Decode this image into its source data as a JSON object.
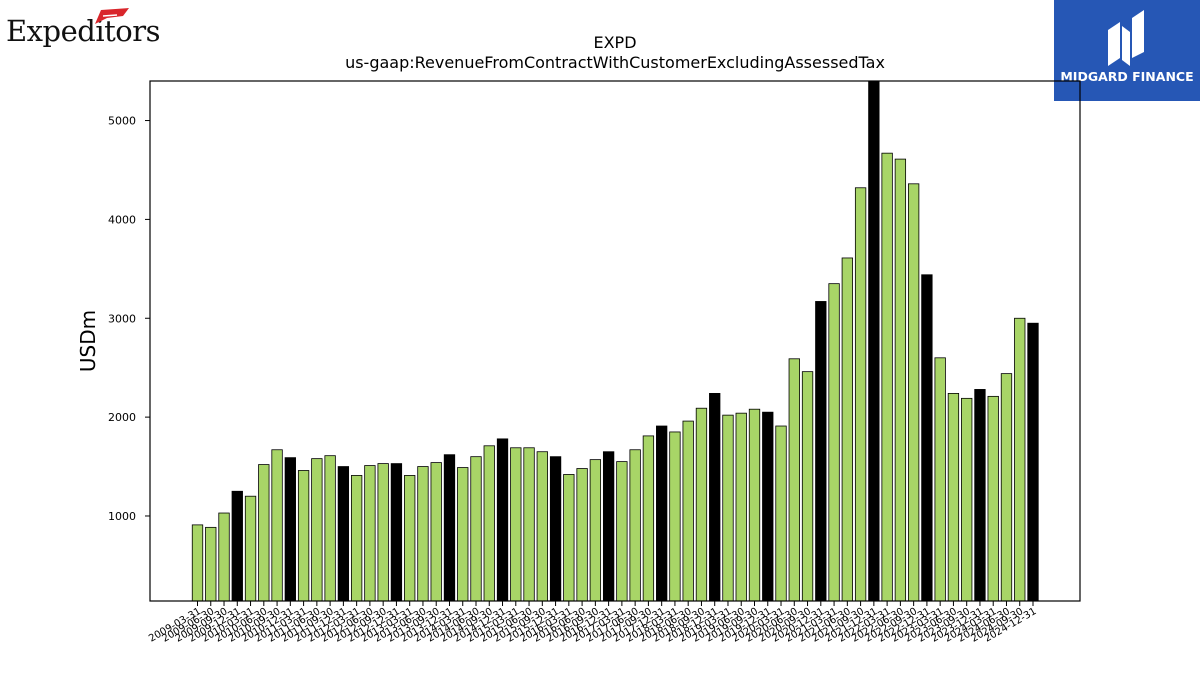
{
  "logos": {
    "left_brand": "Expeditors",
    "right_brand": "MIDGARD FINANCE"
  },
  "chart_data": {
    "type": "bar",
    "title": "EXPD",
    "subtitle": "us-gaap:RevenueFromContractWithCustomerExcludingAssessedTax",
    "xlabel": "",
    "ylabel": "USDm",
    "ylim": [
      140,
      5400
    ],
    "yticks": [
      1000,
      2000,
      3000,
      4000,
      5000
    ],
    "grid": false,
    "colors": {
      "quarter": "#a8d567",
      "year_end": "#000000",
      "edge": "#000000"
    },
    "categories": [
      "2009-03-31",
      "2009-06-30",
      "2009-09-30",
      "2009-12-31",
      "2010-03-31",
      "2010-06-30",
      "2010-09-30",
      "2010-12-31",
      "2011-03-31",
      "2011-06-30",
      "2011-09-30",
      "2011-12-31",
      "2012-03-31",
      "2012-06-30",
      "2012-09-30",
      "2012-12-31",
      "2013-03-31",
      "2013-06-30",
      "2013-09-30",
      "2013-12-31",
      "2014-03-31",
      "2014-06-30",
      "2014-09-30",
      "2014-12-31",
      "2015-03-31",
      "2015-06-30",
      "2015-09-30",
      "2015-12-31",
      "2016-03-31",
      "2016-06-30",
      "2016-09-30",
      "2016-12-31",
      "2017-03-31",
      "2017-06-30",
      "2017-09-30",
      "2017-12-31",
      "2018-03-31",
      "2018-06-30",
      "2018-09-30",
      "2018-12-31",
      "2019-03-31",
      "2019-06-30",
      "2019-09-30",
      "2019-12-31",
      "2020-03-31",
      "2020-06-30",
      "2020-09-30",
      "2020-12-31",
      "2021-03-31",
      "2021-06-30",
      "2021-09-30",
      "2021-12-31",
      "2022-03-31",
      "2022-06-30",
      "2022-09-30",
      "2022-12-31",
      "2023-03-31",
      "2023-06-30",
      "2023-09-30",
      "2023-12-31",
      "2024-03-31",
      "2024-06-30",
      "2024-09-30",
      "2024-12-31"
    ],
    "series": [
      {
        "values": [
          910,
          885,
          1030,
          1250,
          1200,
          1520,
          1670,
          1590,
          1460,
          1580,
          1610,
          1500,
          1410,
          1510,
          1530,
          1530,
          1410,
          1500,
          1540,
          1620,
          1490,
          1600,
          1710,
          1780,
          1690,
          1690,
          1650,
          1600,
          1420,
          1480,
          1570,
          1650,
          1550,
          1670,
          1810,
          1910,
          1850,
          1960,
          2090,
          2240,
          2020,
          2040,
          2080,
          2050,
          1910,
          2590,
          2460,
          3170,
          3350,
          3610,
          4320,
          5400,
          4670,
          4610,
          4360,
          3440,
          2600,
          2240,
          2190,
          2280,
          2210,
          2440,
          3000,
          2950
        ],
        "year_end": [
          false,
          false,
          false,
          true,
          false,
          false,
          false,
          true,
          false,
          false,
          false,
          true,
          false,
          false,
          false,
          true,
          false,
          false,
          false,
          true,
          false,
          false,
          false,
          true,
          false,
          false,
          false,
          true,
          false,
          false,
          false,
          true,
          false,
          false,
          false,
          true,
          false,
          false,
          false,
          true,
          false,
          false,
          false,
          true,
          false,
          false,
          false,
          true,
          false,
          false,
          false,
          true,
          false,
          false,
          false,
          true,
          false,
          false,
          false,
          true,
          false,
          false,
          false,
          true
        ]
      }
    ]
  }
}
